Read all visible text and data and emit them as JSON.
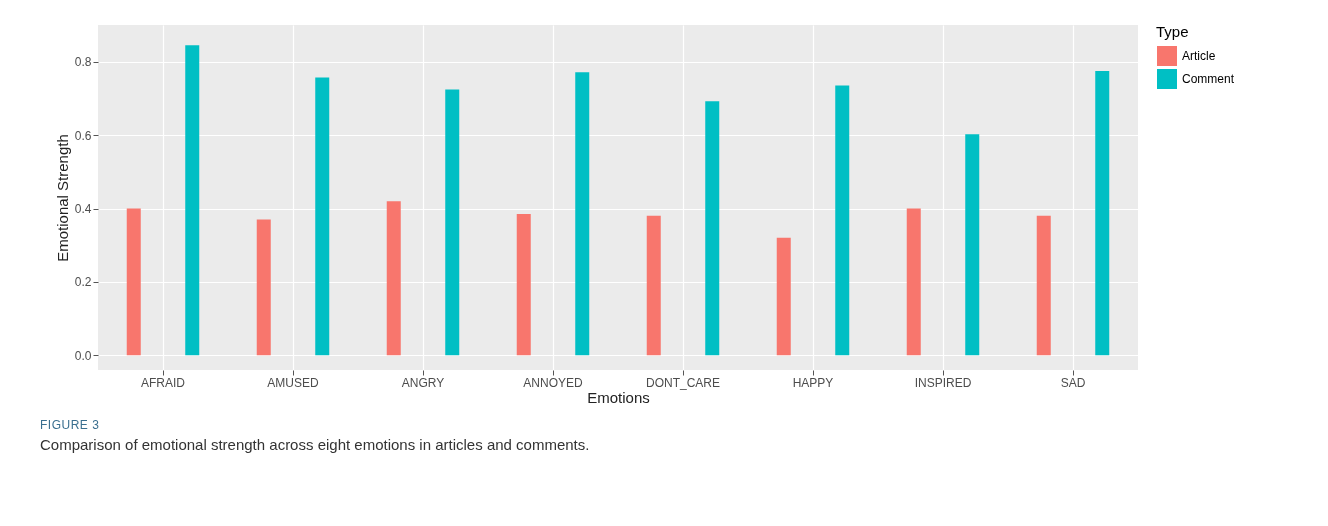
{
  "chart_data": {
    "type": "bar",
    "categories": [
      "AFRAID",
      "AMUSED",
      "ANGRY",
      "ANNOYED",
      "DONT_CARE",
      "HAPPY",
      "INSPIRED",
      "SAD"
    ],
    "series": [
      {
        "name": "Article",
        "color": "#f8766d",
        "values": [
          0.4,
          0.37,
          0.42,
          0.385,
          0.38,
          0.32,
          0.4,
          0.38
        ]
      },
      {
        "name": "Comment",
        "color": "#00bfc4",
        "values": [
          0.845,
          0.757,
          0.724,
          0.771,
          0.692,
          0.735,
          0.602,
          0.775
        ]
      }
    ],
    "xlabel": "Emotions",
    "ylabel": "Emotional Strength",
    "legend_title": "Type",
    "ylim": [
      -0.04,
      0.9
    ],
    "yticks": [
      {
        "value": 0,
        "label": "0.0"
      },
      0.2,
      0.4,
      0.6,
      0.8
    ],
    "grid": true,
    "legend": "right",
    "annotations": [
      "FIGURE 3",
      "Comparison of emotional strength across eight emotions in articles and comments."
    ]
  }
}
